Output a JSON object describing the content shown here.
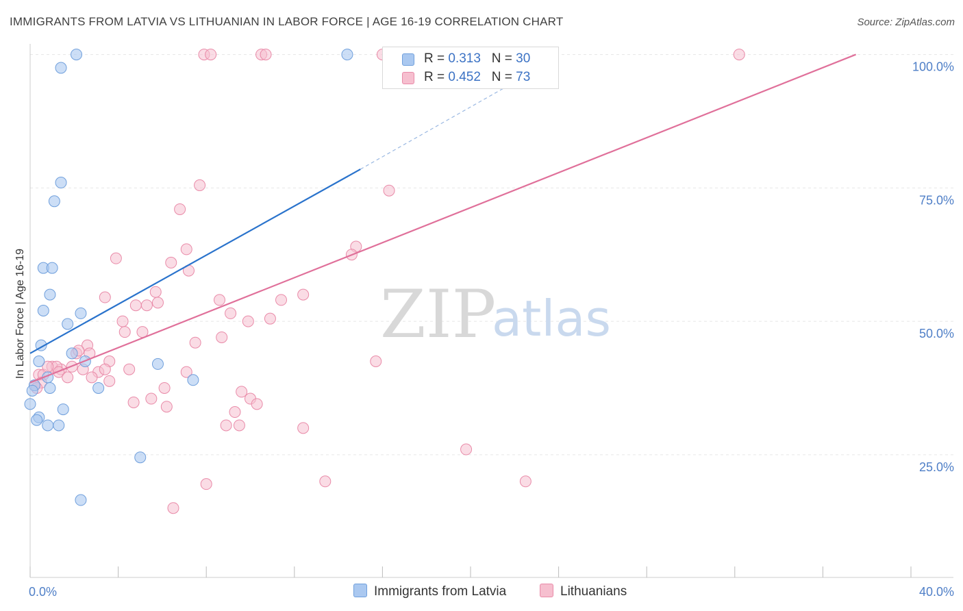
{
  "title": "IMMIGRANTS FROM LATVIA VS LITHUANIAN IN LABOR FORCE | AGE 16-19 CORRELATION CHART",
  "source": "Source: ZipAtlas.com",
  "watermark": {
    "zip": "ZIP",
    "atlas": "atlas"
  },
  "colors": {
    "latvia_fill": "#aac8f0",
    "latvia_stroke": "#6f9fdc",
    "latvia_line": "#2a73cc",
    "lith_fill": "#f6bfcf",
    "lith_stroke": "#e98aa8",
    "lith_line": "#e0709a",
    "grid": "#e6e6e6",
    "tick_text": "#4f7fc7"
  },
  "legend": {
    "rows": [
      {
        "r_label": "R = ",
        "r_value": "0.313",
        "n_label": "N = ",
        "n_value": "30"
      },
      {
        "r_label": "R = ",
        "r_value": "0.452",
        "n_label": "N = ",
        "n_value": "73"
      }
    ]
  },
  "chart_data": {
    "type": "scatter",
    "title": "IMMIGRANTS FROM LATVIA VS LITHUANIAN IN LABOR FORCE | AGE 16-19 CORRELATION CHART",
    "xlabel": "",
    "ylabel": "In Labor Force | Age 16-19",
    "xlim": [
      0,
      40
    ],
    "ylim": [
      2,
      102
    ],
    "x_tick_labels": [
      "0.0%",
      "40.0%"
    ],
    "y_ticks": [
      25,
      50,
      75,
      100
    ],
    "y_tick_labels": [
      "25.0%",
      "50.0%",
      "75.0%",
      "100.0%"
    ],
    "grid": true,
    "legend_position": "top-center",
    "series": [
      {
        "name": "Immigrants from Latvia",
        "R": 0.313,
        "N": 30,
        "points": [
          [
            2.1,
            100
          ],
          [
            14.4,
            100
          ],
          [
            1.4,
            97.5
          ],
          [
            1.4,
            76
          ],
          [
            1.1,
            72.5
          ],
          [
            0.6,
            60
          ],
          [
            1.0,
            60
          ],
          [
            0.9,
            55
          ],
          [
            0.6,
            52
          ],
          [
            2.3,
            51.5
          ],
          [
            1.7,
            49.5
          ],
          [
            0.5,
            45.5
          ],
          [
            1.9,
            44
          ],
          [
            2.5,
            42.5
          ],
          [
            0.4,
            42.5
          ],
          [
            5.8,
            42
          ],
          [
            7.4,
            39
          ],
          [
            0.8,
            39.5
          ],
          [
            0.2,
            38
          ],
          [
            0.9,
            37.5
          ],
          [
            3.1,
            37.5
          ],
          [
            0.1,
            37
          ],
          [
            0.0,
            34.5
          ],
          [
            1.5,
            33.5
          ],
          [
            0.4,
            32
          ],
          [
            0.3,
            31.5
          ],
          [
            0.8,
            30.5
          ],
          [
            1.3,
            30.5
          ],
          [
            5.0,
            24.5
          ],
          [
            2.3,
            16.5
          ]
        ],
        "trend": {
          "x": [
            0,
            15
          ],
          "y": [
            44,
            78.5
          ]
        },
        "trend_dashed": {
          "x": [
            15,
            24
          ],
          "y": [
            78.5,
            99.5
          ]
        }
      },
      {
        "name": "Lithuanians",
        "R": 0.452,
        "N": 73,
        "points": [
          [
            7.9,
            100
          ],
          [
            8.2,
            100
          ],
          [
            10.5,
            100
          ],
          [
            10.7,
            100
          ],
          [
            16.0,
            100
          ],
          [
            19.0,
            100
          ],
          [
            32.2,
            100
          ],
          [
            7.7,
            75.5
          ],
          [
            16.3,
            74.5
          ],
          [
            6.8,
            71
          ],
          [
            14.8,
            64
          ],
          [
            14.6,
            62.5
          ],
          [
            3.9,
            61.8
          ],
          [
            7.1,
            63.5
          ],
          [
            6.4,
            61
          ],
          [
            7.2,
            59.5
          ],
          [
            5.7,
            55.5
          ],
          [
            12.4,
            55
          ],
          [
            3.4,
            54.5
          ],
          [
            11.4,
            54
          ],
          [
            8.6,
            54
          ],
          [
            5.8,
            53.5
          ],
          [
            5.3,
            53
          ],
          [
            4.8,
            53
          ],
          [
            9.1,
            51.5
          ],
          [
            10.9,
            50.5
          ],
          [
            4.2,
            50
          ],
          [
            9.9,
            50
          ],
          [
            4.3,
            48
          ],
          [
            5.1,
            48
          ],
          [
            8.7,
            47
          ],
          [
            7.5,
            46
          ],
          [
            2.6,
            45.5
          ],
          [
            2.1,
            44
          ],
          [
            2.2,
            44.5
          ],
          [
            15.7,
            42.5
          ],
          [
            3.6,
            42.5
          ],
          [
            1.0,
            41.5
          ],
          [
            1.4,
            41
          ],
          [
            1.2,
            41.5
          ],
          [
            2.4,
            41
          ],
          [
            3.1,
            40.5
          ],
          [
            3.4,
            41
          ],
          [
            7.1,
            40.5
          ],
          [
            4.5,
            41
          ],
          [
            1.3,
            40.5
          ],
          [
            2.8,
            39.5
          ],
          [
            1.7,
            39.5
          ],
          [
            0.4,
            40
          ],
          [
            0.6,
            40
          ],
          [
            3.6,
            38.8
          ],
          [
            0.5,
            38.5
          ],
          [
            0.2,
            38
          ],
          [
            0.3,
            37.5
          ],
          [
            6.1,
            37.5
          ],
          [
            9.6,
            36.8
          ],
          [
            10.0,
            35.5
          ],
          [
            5.5,
            35.5
          ],
          [
            4.7,
            34.8
          ],
          [
            6.2,
            34
          ],
          [
            10.3,
            34.5
          ],
          [
            9.3,
            33
          ],
          [
            8.9,
            30.5
          ],
          [
            9.5,
            30.5
          ],
          [
            12.4,
            30
          ],
          [
            19.8,
            26
          ],
          [
            13.4,
            20
          ],
          [
            22.5,
            20
          ],
          [
            8.0,
            19.5
          ],
          [
            6.5,
            15
          ],
          [
            0.8,
            41.5
          ],
          [
            1.9,
            41.5
          ],
          [
            2.7,
            44
          ]
        ],
        "trend": {
          "x": [
            0,
            37.5
          ],
          "y": [
            38.5,
            100
          ]
        }
      }
    ]
  },
  "bottom_legend": [
    {
      "label": "Immigrants from Latvia"
    },
    {
      "label": "Lithuanians"
    }
  ]
}
